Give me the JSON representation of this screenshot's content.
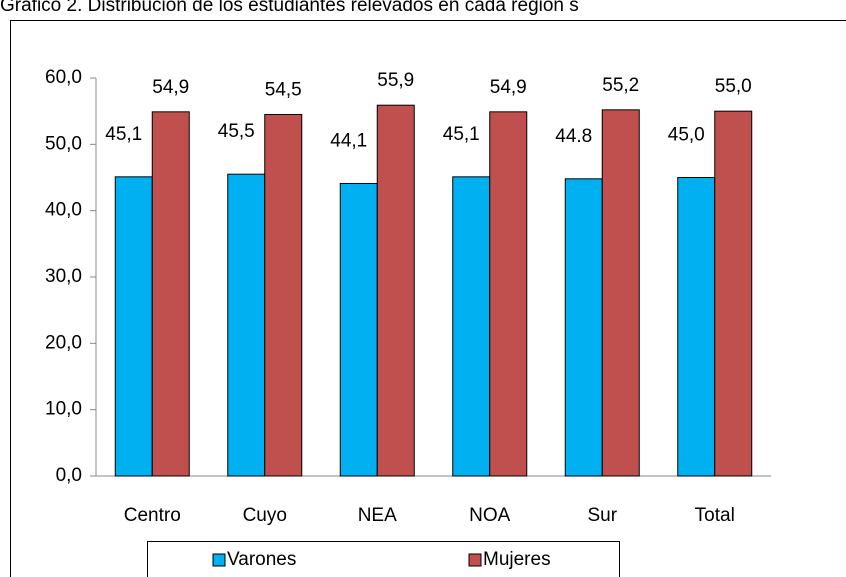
{
  "chart_data": {
    "type": "bar",
    "title": "Gráfico 2. Distribución de los estudiantes relevados en cada región s",
    "categories": [
      "Centro",
      "Cuyo",
      "NEA",
      "NOA",
      "Sur",
      "Total"
    ],
    "series": [
      {
        "name": "Varones",
        "color": "#00b0f0",
        "values": [
          45.1,
          45.5,
          44.1,
          45.1,
          44.8,
          45.0
        ],
        "value_labels": [
          "45,1",
          "45,5",
          "44,1",
          "45,1",
          "44.8",
          "45,0"
        ]
      },
      {
        "name": "Mujeres",
        "color": "#c0504d",
        "values": [
          54.9,
          54.5,
          55.9,
          54.9,
          55.2,
          55.0
        ],
        "value_labels": [
          "54,9",
          "54,5",
          "55,9",
          "54,9",
          "55,2",
          "55,0"
        ]
      }
    ],
    "ylim": [
      0,
      60
    ],
    "yticks": [
      {
        "value": 0,
        "label": "0,0"
      },
      {
        "value": 10,
        "label": "10,0"
      },
      {
        "value": 20,
        "label": "20,0"
      },
      {
        "value": 30,
        "label": "30,0"
      },
      {
        "value": 40,
        "label": "40,0"
      },
      {
        "value": 50,
        "label": "50,0"
      },
      {
        "value": 60,
        "label": "60,0"
      }
    ],
    "legend": "bottom"
  }
}
